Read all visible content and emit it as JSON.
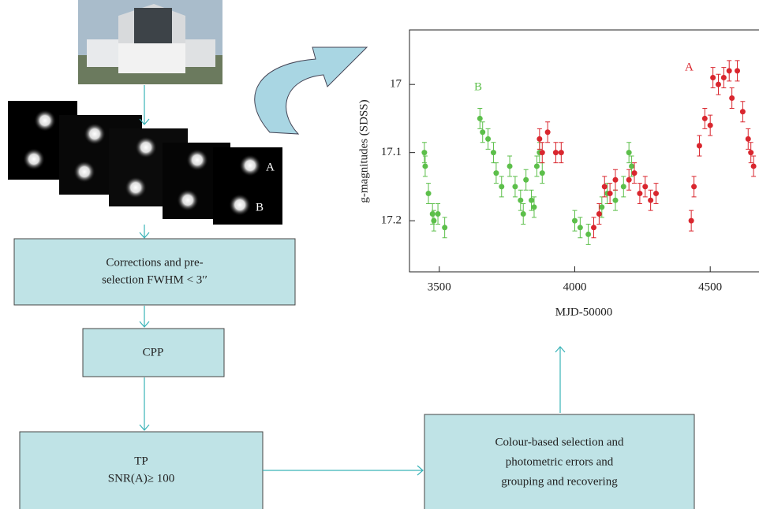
{
  "nodes": [
    {
      "lines": [
        "Corrections and pre-",
        "selection FWHM < 3′′"
      ]
    },
    {
      "lines": [
        "CPP"
      ]
    },
    {
      "lines": [
        "TP",
        "SNR(A)≥ 100"
      ]
    },
    {
      "lines": [
        "Colour-based selection and",
        "photometric errors and",
        "grouping and recovering"
      ]
    }
  ],
  "frames": {
    "labels": [
      "A",
      "B"
    ]
  },
  "chart_data": {
    "type": "scatter",
    "y_label": "g-magnitudes (SDSS)",
    "x_label": "MJD-50000",
    "xlim": [
      3390,
      4680
    ],
    "ylim": [
      17.275,
      16.92
    ],
    "xticks": [
      3500,
      4000,
      4500
    ],
    "yticks": [
      17,
      17.1,
      17.2
    ],
    "annotations": [
      "A",
      "B"
    ],
    "series": [
      {
        "name": "B",
        "color": "#5cbf4a",
        "x": [
          3445,
          3448,
          3460,
          3475,
          3480,
          3495,
          3520,
          3650,
          3660,
          3680,
          3700,
          3710,
          3730,
          3760,
          3780,
          3800,
          3810,
          3820,
          3840,
          3850,
          3860,
          3870,
          3880,
          4000,
          4020,
          4050,
          4100,
          4120,
          4150,
          4180,
          4200,
          4210
        ],
        "values": [
          17.1,
          17.12,
          17.16,
          17.19,
          17.2,
          17.19,
          17.21,
          17.05,
          17.07,
          17.08,
          17.1,
          17.13,
          17.15,
          17.12,
          17.15,
          17.17,
          17.19,
          17.14,
          17.17,
          17.18,
          17.12,
          17.1,
          17.13,
          17.2,
          17.21,
          17.22,
          17.18,
          17.16,
          17.17,
          17.15,
          17.1,
          17.12
        ],
        "errors": [
          0.015,
          0.015,
          0.015,
          0.015,
          0.015,
          0.015,
          0.015,
          0.015,
          0.015,
          0.015,
          0.015,
          0.015,
          0.015,
          0.015,
          0.015,
          0.015,
          0.015,
          0.015,
          0.015,
          0.015,
          0.015,
          0.015,
          0.015,
          0.015,
          0.015,
          0.015,
          0.015,
          0.015,
          0.015,
          0.015,
          0.015,
          0.015
        ]
      },
      {
        "name": "A",
        "color": "#d9262e",
        "x": [
          3870,
          3880,
          3900,
          3930,
          3950,
          4070,
          4090,
          4110,
          4130,
          4150,
          4200,
          4220,
          4240,
          4260,
          4280,
          4300,
          4430,
          4440,
          4460,
          4480,
          4500,
          4510,
          4530,
          4550,
          4570,
          4580,
          4600,
          4620,
          4640,
          4650,
          4660
        ],
        "values": [
          17.08,
          17.1,
          17.07,
          17.1,
          17.1,
          17.21,
          17.19,
          17.15,
          17.16,
          17.14,
          17.14,
          17.13,
          17.16,
          17.15,
          17.17,
          17.16,
          17.2,
          17.15,
          17.09,
          17.05,
          17.06,
          16.99,
          17.0,
          16.99,
          16.98,
          17.02,
          16.98,
          17.04,
          17.08,
          17.1,
          17.12
        ],
        "errors": [
          0.015,
          0.015,
          0.015,
          0.015,
          0.015,
          0.015,
          0.015,
          0.015,
          0.015,
          0.015,
          0.015,
          0.015,
          0.015,
          0.015,
          0.015,
          0.015,
          0.015,
          0.015,
          0.015,
          0.015,
          0.015,
          0.015,
          0.015,
          0.015,
          0.015,
          0.015,
          0.015,
          0.015,
          0.015,
          0.015,
          0.015
        ]
      }
    ]
  }
}
